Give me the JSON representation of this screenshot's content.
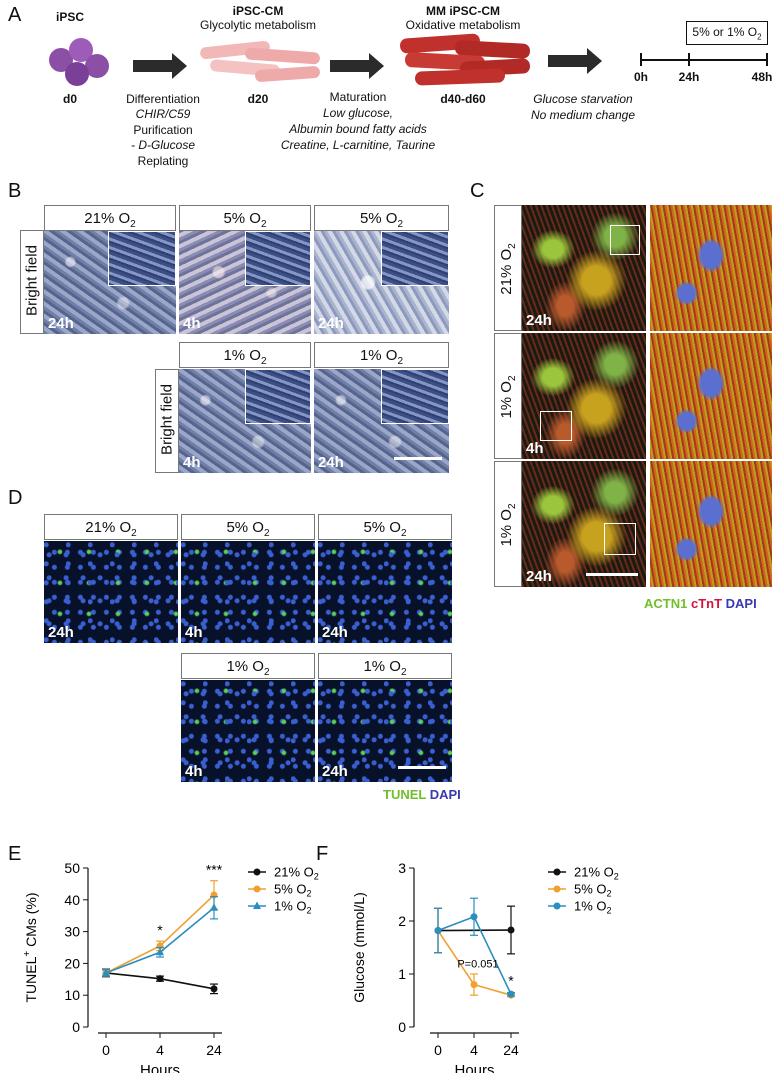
{
  "panel_a": {
    "label": "A",
    "stage1_title": "iPSC",
    "stage1_day": "d0",
    "stage2_title": "iPSC-CM",
    "stage2_sub": "Glycolytic metabolism",
    "stage2_day": "d20",
    "stage3_title": "MM iPSC-CM",
    "stage3_sub": "Oxidative metabolism",
    "stage3_day": "d40-d60",
    "step1_lines": [
      "Differentiation",
      "CHIR/C59",
      "Purification",
      "- D-Glucose",
      "Replating"
    ],
    "step2_lines": [
      "Maturation",
      "Low glucose,",
      "Albumin bound fatty acids",
      "Creatine, L-carnitine, Taurine"
    ],
    "step3_lines": [
      "Glucose starvation",
      "No medium change"
    ],
    "timeline_box": "5% or 1% O",
    "timeline_box_sub": "2",
    "timeline_ticks": [
      "0h",
      "24h",
      "48h"
    ]
  },
  "panel_b": {
    "label": "B",
    "side_label": "Bright field",
    "top_row": [
      {
        "o2": "21% O",
        "sub": "2",
        "time": "24h"
      },
      {
        "o2": "5% O",
        "sub": "2",
        "time": "4h"
      },
      {
        "o2": "5% O",
        "sub": "2",
        "time": "24h"
      }
    ],
    "bottom_row": [
      {
        "o2": "1% O",
        "sub": "2",
        "time": "4h"
      },
      {
        "o2": "1% O",
        "sub": "2",
        "time": "24h"
      }
    ]
  },
  "panel_c": {
    "label": "C",
    "rows": [
      {
        "o2": "21% O",
        "sub": "2",
        "time": "24h"
      },
      {
        "o2": "1% O",
        "sub": "2",
        "time": "4h"
      },
      {
        "o2": "1% O",
        "sub": "2",
        "time": "24h"
      }
    ],
    "legend": {
      "actn1": "ACTN1",
      "ctnt": "cTnT",
      "dapi": "DAPI"
    },
    "colors": {
      "actn1": "#6fbf2a",
      "ctnt": "#d4143c",
      "dapi": "#3a3ab0"
    }
  },
  "panel_d": {
    "label": "D",
    "top_row": [
      {
        "o2": "21% O",
        "sub": "2",
        "time": "24h"
      },
      {
        "o2": "5% O",
        "sub": "2",
        "time": "4h"
      },
      {
        "o2": "5% O",
        "sub": "2",
        "time": "24h"
      }
    ],
    "bottom_row": [
      {
        "o2": "1% O",
        "sub": "2",
        "time": "4h"
      },
      {
        "o2": "1% O",
        "sub": "2",
        "time": "24h"
      }
    ],
    "legend": {
      "tunel": "TUNEL",
      "dapi": "DAPI"
    },
    "colors": {
      "tunel": "#6fbf2a",
      "dapi": "#3a3ab0"
    }
  },
  "chart_data": [
    {
      "panel": "E",
      "type": "line",
      "ylabel": "TUNEL",
      "ylabel_sup": "+",
      "ylabel_rest": " CMs (%)",
      "xlabel": "Hours",
      "x_categories": [
        "0",
        "4",
        "24"
      ],
      "ylim": [
        0,
        50
      ],
      "yticks": [
        0,
        10,
        20,
        30,
        40,
        50
      ],
      "series": [
        {
          "name": "21% O",
          "name_sub": "2",
          "color": "#111111",
          "marker": "circle",
          "values": [
            17,
            15.2,
            12
          ],
          "errors": [
            1.2,
            0.8,
            1.5
          ]
        },
        {
          "name": "5% O",
          "name_sub": "2",
          "color": "#f0a030",
          "marker": "circle",
          "values": [
            17,
            25.5,
            41.5
          ],
          "errors": [
            1.0,
            1.5,
            4.5
          ]
        },
        {
          "name": "1% O",
          "name_sub": "2",
          "color": "#2a8ec0",
          "marker": "triangle",
          "values": [
            17,
            23.5,
            37.5
          ],
          "errors": [
            1.0,
            1.5,
            3.5
          ]
        }
      ],
      "annotations": [
        {
          "x": "4",
          "text": "*"
        },
        {
          "x": "24",
          "text": "***"
        }
      ]
    },
    {
      "panel": "F",
      "type": "line",
      "ylabel": "Glucose (mmol/L)",
      "xlabel": "Hours",
      "x_categories": [
        "0",
        "4",
        "24"
      ],
      "ylim": [
        0,
        3
      ],
      "yticks": [
        0,
        1,
        2,
        3
      ],
      "series": [
        {
          "name": "21% O",
          "name_sub": "2",
          "color": "#111111",
          "marker": "circle",
          "values": [
            1.82,
            null,
            1.83
          ],
          "errors": [
            0.42,
            null,
            0.45
          ]
        },
        {
          "name": "5% O",
          "name_sub": "2",
          "color": "#f0a030",
          "marker": "circle",
          "values": [
            1.82,
            0.8,
            0.6
          ],
          "errors": [
            0.42,
            0.2,
            0.03
          ]
        },
        {
          "name": "1% O",
          "name_sub": "2",
          "color": "#2a8ec0",
          "marker": "circle",
          "values": [
            1.82,
            2.08,
            0.62
          ],
          "errors": [
            0.42,
            0.35,
            0.03
          ]
        }
      ],
      "annotations": [
        {
          "x": "4",
          "text": "P=0.051",
          "italic_prefix": "P"
        },
        {
          "x": "24",
          "text": "*"
        }
      ]
    }
  ]
}
